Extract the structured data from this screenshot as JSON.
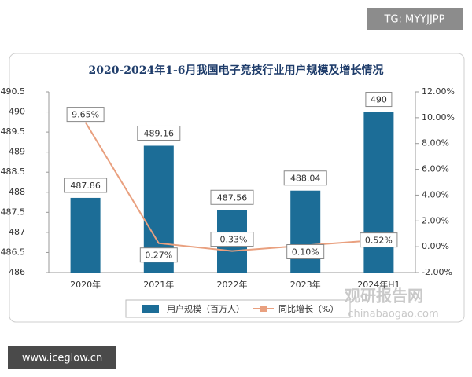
{
  "tag_text": "TG: MYYJJPP",
  "site_text": "www.iceglow.cn",
  "watermark": {
    "title": "观研报告网",
    "url": "chinabaogao.com"
  },
  "chart_data": {
    "type": "bar",
    "title": "2020-2024年1-6月我国电子竞技行业用户规模及增长情况",
    "categories": [
      "2020年",
      "2021年",
      "2022年",
      "2023年",
      "2024年H1"
    ],
    "series": [
      {
        "name": "用户规模（百万人）",
        "type": "bar",
        "color": "#1c6d97",
        "values": [
          487.86,
          489.16,
          487.56,
          488.04,
          490
        ]
      },
      {
        "name": "同比增长（%）",
        "type": "line",
        "axis": "y2",
        "color": "#e9a07f",
        "values": [
          9.65,
          0.27,
          -0.33,
          0.1,
          0.52
        ],
        "value_labels": [
          "9.65%",
          "0.27%",
          "-0.33%",
          "0.10%",
          "0.52%"
        ]
      }
    ],
    "ylim": [
      486,
      490.5
    ],
    "yticks": [
      486,
      486.5,
      487,
      487.5,
      488,
      488.5,
      489,
      489.5,
      490,
      490.5
    ],
    "y2lim": [
      -2,
      12
    ],
    "y2ticks": [
      {
        "value": -2,
        "label": "-2.00%"
      },
      {
        "value": 0,
        "label": "0.00%"
      },
      {
        "value": 2,
        "label": "2.00%"
      },
      {
        "value": 4,
        "label": "4.00%"
      },
      {
        "value": 6,
        "label": "6.00%"
      },
      {
        "value": 8,
        "label": "8.00%"
      },
      {
        "value": 10,
        "label": "10.00%"
      },
      {
        "value": 12,
        "label": "12.00%"
      }
    ],
    "grid": false,
    "legend": "bottom"
  }
}
